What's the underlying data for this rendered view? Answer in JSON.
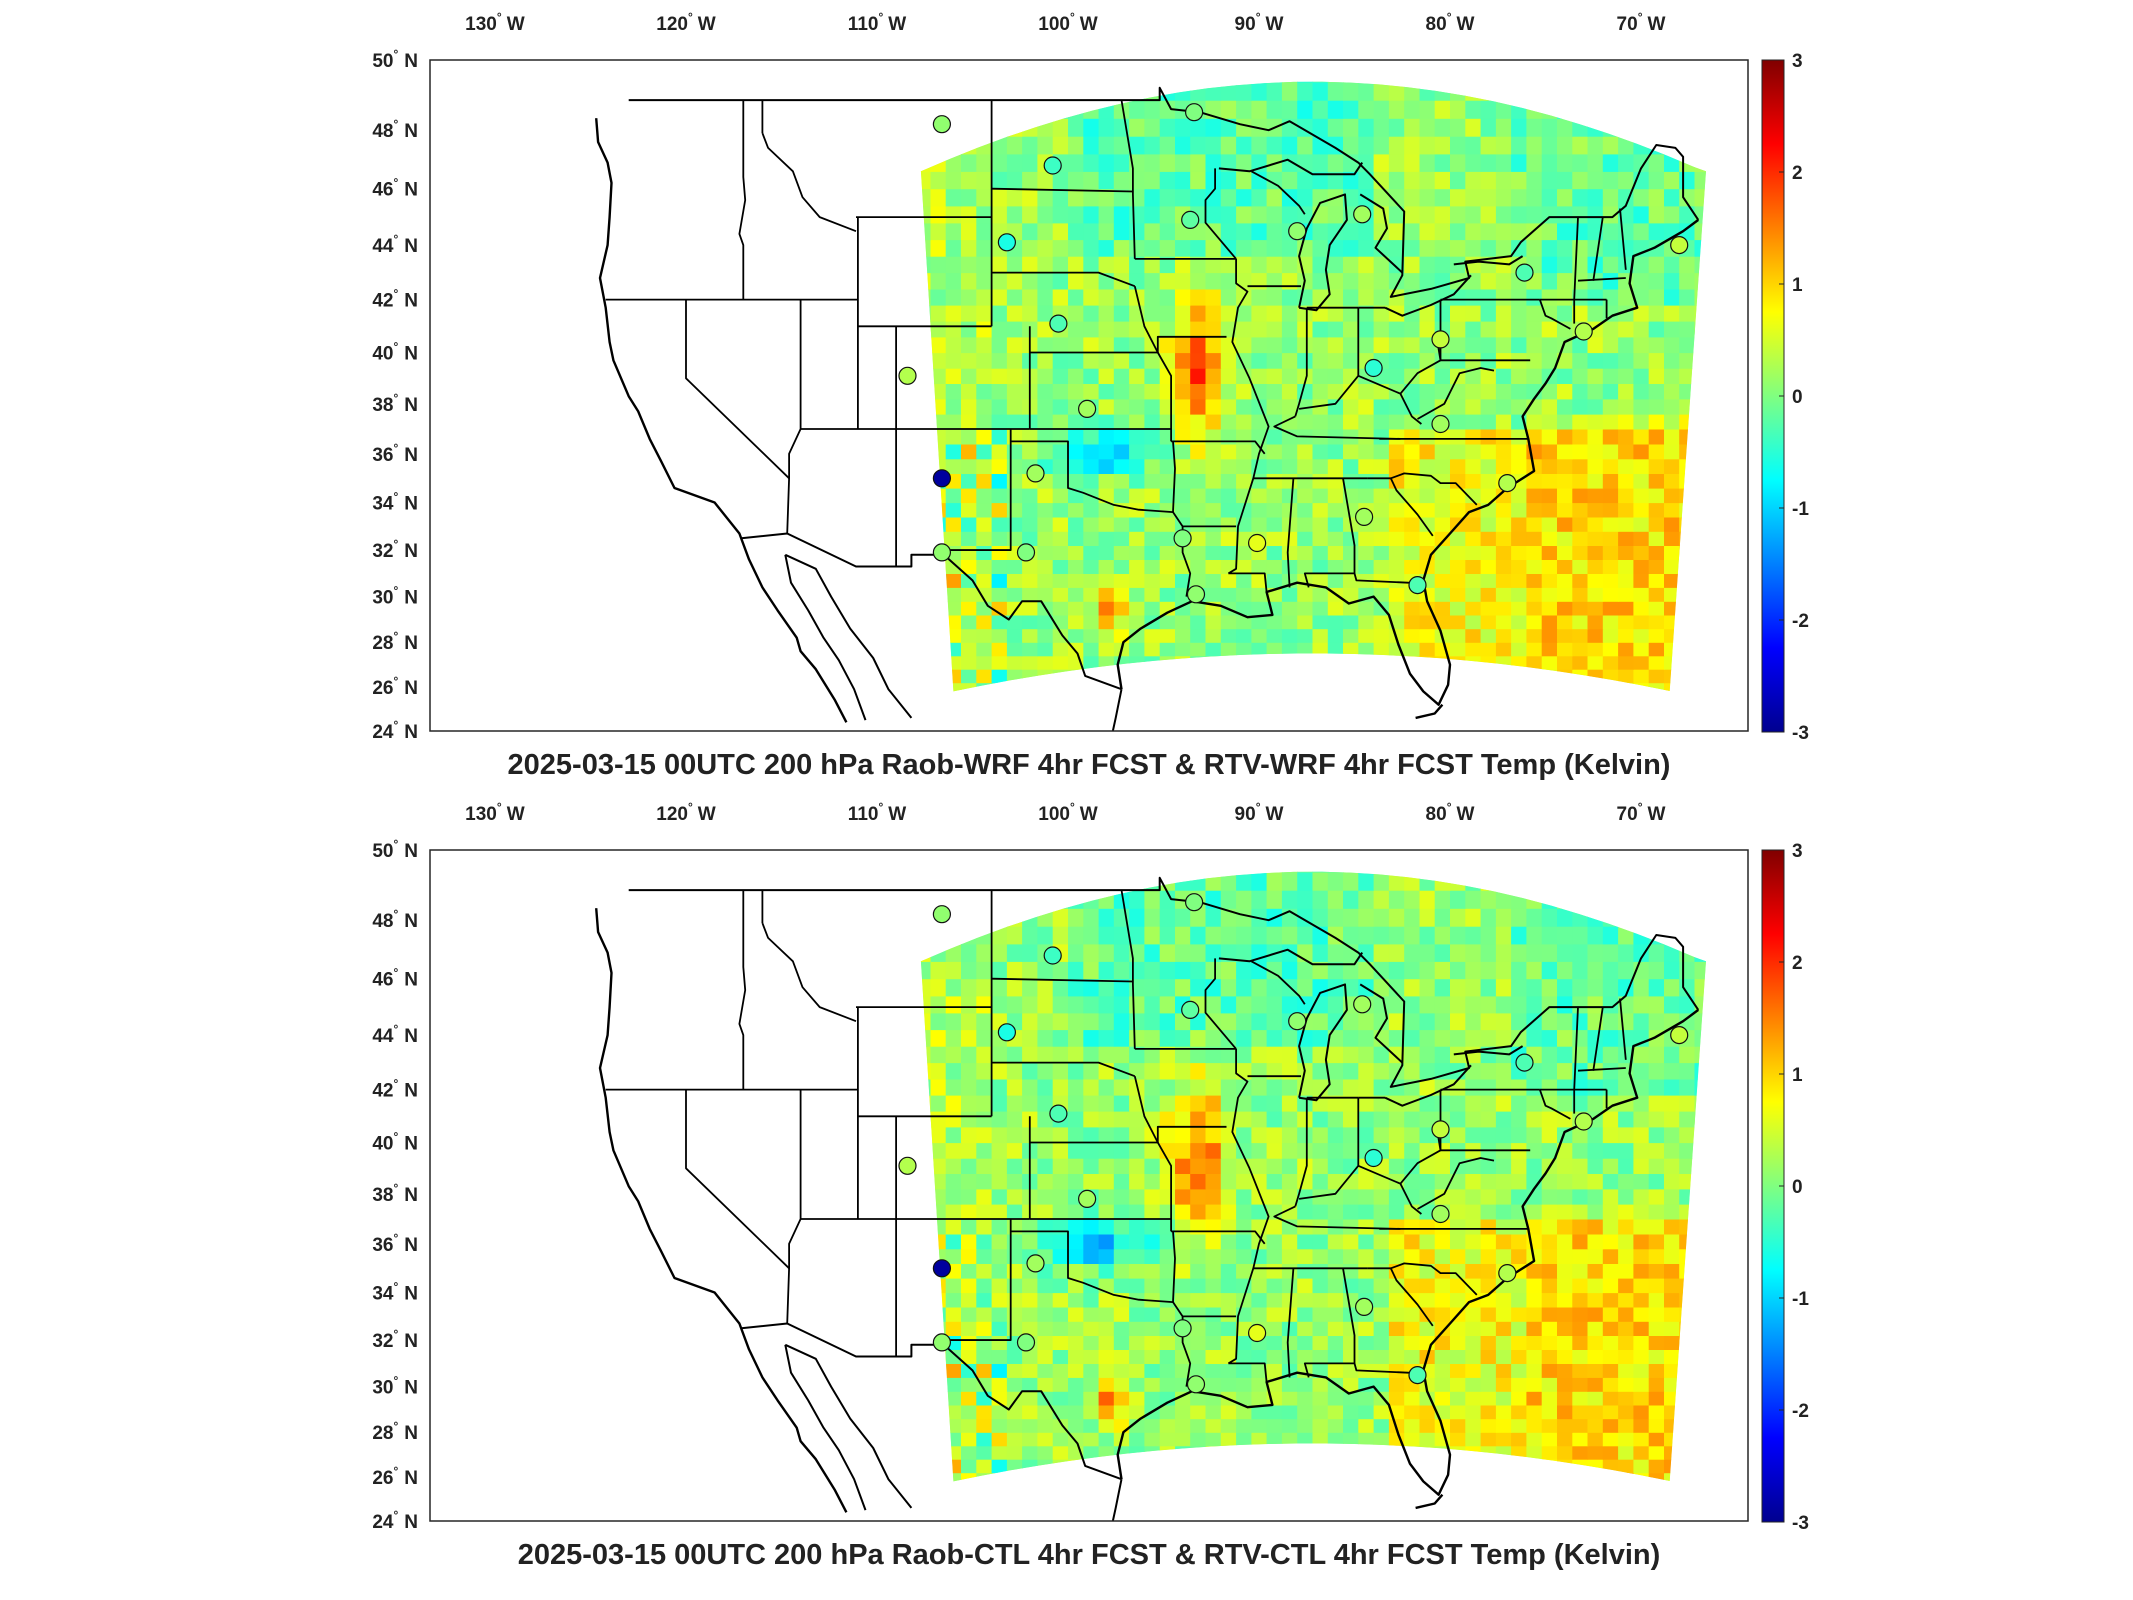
{
  "panels": [
    {
      "title": "2025-03-15 00UTC 200 hPa Raob-WRF 4hr FCST & RTV-WRF 4hr FCST Temp (Kelvin)",
      "variant": 0
    },
    {
      "title": "2025-03-15 00UTC 200 hPa Raob-CTL 4hr FCST & RTV-CTL 4hr FCST Temp (Kelvin)",
      "variant": 1
    }
  ],
  "lon_labels": [
    {
      "deg": "130",
      "dir": "W",
      "lon": -130
    },
    {
      "deg": "120",
      "dir": "W",
      "lon": -120
    },
    {
      "deg": "110",
      "dir": "W",
      "lon": -110
    },
    {
      "deg": "100",
      "dir": "W",
      "lon": -100
    },
    {
      "deg": "90",
      "dir": "W",
      "lon": -90
    },
    {
      "deg": "80",
      "dir": "W",
      "lon": -80
    },
    {
      "deg": "70",
      "dir": "W",
      "lon": -70
    }
  ],
  "lat_labels": [
    {
      "deg": "50",
      "dir": "N",
      "lat": 50
    },
    {
      "deg": "48",
      "dir": "N",
      "lat": 48
    },
    {
      "deg": "46",
      "dir": "N",
      "lat": 46
    },
    {
      "deg": "44",
      "dir": "N",
      "lat": 44
    },
    {
      "deg": "42",
      "dir": "N",
      "lat": 42
    },
    {
      "deg": "40",
      "dir": "N",
      "lat": 40
    },
    {
      "deg": "38",
      "dir": "N",
      "lat": 38
    },
    {
      "deg": "36",
      "dir": "N",
      "lat": 36
    },
    {
      "deg": "34",
      "dir": "N",
      "lat": 34
    },
    {
      "deg": "32",
      "dir": "N",
      "lat": 32
    },
    {
      "deg": "30",
      "dir": "N",
      "lat": 30
    },
    {
      "deg": "28",
      "dir": "N",
      "lat": 28
    },
    {
      "deg": "26",
      "dir": "N",
      "lat": 26
    },
    {
      "deg": "24",
      "dir": "N",
      "lat": 24
    }
  ],
  "colorbar": {
    "ticks": [
      "3",
      "2",
      "1",
      "0",
      "-1",
      "-2",
      "-3"
    ],
    "min": -3,
    "max": 3,
    "colormap": "jet",
    "stops": [
      "#00008f",
      "#0000ff",
      "#0080ff",
      "#00ffff",
      "#80ff80",
      "#ffff00",
      "#ff8000",
      "#ff0000",
      "#800000"
    ]
  },
  "colors": {
    "field_base": "#9bef7a",
    "border": "#000000",
    "frame": "#262626"
  },
  "raob_stations": [
    {
      "lon": -106.6,
      "lat": 48.2,
      "value": 0.1
    },
    {
      "lon": -93.4,
      "lat": 48.6,
      "value": 0.0
    },
    {
      "lon": -100.8,
      "lat": 46.8,
      "value": -0.4
    },
    {
      "lon": -103.2,
      "lat": 44.1,
      "value": -0.6
    },
    {
      "lon": -93.6,
      "lat": 44.9,
      "value": -0.2
    },
    {
      "lon": -88.0,
      "lat": 44.5,
      "value": 0.1
    },
    {
      "lon": -84.6,
      "lat": 45.1,
      "value": 0.2
    },
    {
      "lon": -100.5,
      "lat": 41.1,
      "value": -0.3
    },
    {
      "lon": -108.4,
      "lat": 39.1,
      "value": 0.3
    },
    {
      "lon": -99.0,
      "lat": 37.8,
      "value": 0.2
    },
    {
      "lon": -84.0,
      "lat": 39.4,
      "value": -0.5
    },
    {
      "lon": -80.5,
      "lat": 40.5,
      "value": 0.4
    },
    {
      "lon": -76.1,
      "lat": 43.0,
      "value": -0.3
    },
    {
      "lon": -68.0,
      "lat": 44.0,
      "value": 0.4
    },
    {
      "lon": -73.0,
      "lat": 40.8,
      "value": 0.3
    },
    {
      "lon": -80.5,
      "lat": 37.2,
      "value": 0.2
    },
    {
      "lon": -77.0,
      "lat": 34.8,
      "value": 0.3
    },
    {
      "lon": -106.6,
      "lat": 35.0,
      "value": -2.9
    },
    {
      "lon": -101.7,
      "lat": 35.2,
      "value": 0.2
    },
    {
      "lon": -106.6,
      "lat": 31.9,
      "value": 0.1
    },
    {
      "lon": -102.2,
      "lat": 31.9,
      "value": 0.0
    },
    {
      "lon": -94.0,
      "lat": 32.5,
      "value": 0.0
    },
    {
      "lon": -90.1,
      "lat": 32.3,
      "value": 0.6
    },
    {
      "lon": -84.5,
      "lat": 33.4,
      "value": 0.2
    },
    {
      "lon": -93.3,
      "lat": 30.1,
      "value": 0.1
    },
    {
      "lon": -81.7,
      "lat": 30.5,
      "value": -0.3
    }
  ]
}
